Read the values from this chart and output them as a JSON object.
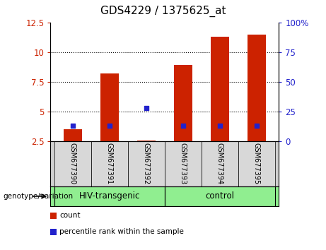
{
  "title": "GDS4229 / 1375625_at",
  "samples": [
    "GSM677390",
    "GSM677391",
    "GSM677392",
    "GSM677393",
    "GSM677394",
    "GSM677395"
  ],
  "count_values": [
    3.5,
    8.2,
    2.55,
    8.9,
    11.3,
    11.5
  ],
  "percentile_values": [
    13,
    13,
    28,
    13,
    13,
    13
  ],
  "left_ylim": [
    2.5,
    12.5
  ],
  "right_ylim": [
    0,
    100
  ],
  "left_yticks": [
    2.5,
    5.0,
    7.5,
    10.0,
    12.5
  ],
  "right_yticks": [
    0,
    25,
    50,
    75,
    100
  ],
  "left_yticklabels": [
    "2.5",
    "5",
    "7.5",
    "10",
    "12.5"
  ],
  "right_yticklabels": [
    "0",
    "25",
    "50",
    "75",
    "100%"
  ],
  "grid_yticks": [
    5.0,
    7.5,
    10.0
  ],
  "bar_color": "#cc2200",
  "percentile_color": "#2222cc",
  "title_fontsize": 11,
  "bar_width": 0.5,
  "group_label": "genotype/variation",
  "group_spans": [
    [
      -0.5,
      2.5,
      "HIV-transgenic",
      "#90ee90"
    ],
    [
      2.5,
      5.5,
      "control",
      "#90ee90"
    ]
  ],
  "legend_count_label": "count",
  "legend_percentile_label": "percentile rank within the sample",
  "plot_bg": "#ffffff"
}
